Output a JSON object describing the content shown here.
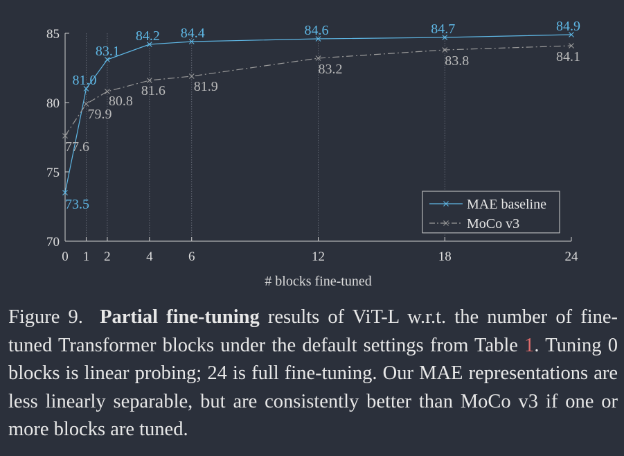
{
  "colors": {
    "background": "#2b303b",
    "mae": "#5fb8e6",
    "moco": "#9a9a9a",
    "axis": "#cfcfcf",
    "reference": "#e06c6c"
  },
  "chart_data": {
    "type": "line",
    "xlabel": "# blocks fine-tuned",
    "ylabel": "",
    "xlim": [
      0,
      24
    ],
    "ylim": [
      70,
      85
    ],
    "x": [
      0,
      1,
      2,
      4,
      6,
      12,
      18,
      24
    ],
    "x_ticks": [
      "0",
      "1",
      "2",
      "4",
      "6",
      "12",
      "18",
      "24"
    ],
    "y_ticks": [
      "70",
      "75",
      "80",
      "85"
    ],
    "grid": "vertical dotted at x ticks",
    "legend_position": "bottom-right",
    "series": [
      {
        "name": "MAE baseline",
        "style": "solid",
        "marker": "x",
        "values": [
          73.5,
          81.0,
          83.1,
          84.2,
          84.4,
          84.6,
          84.7,
          84.9
        ],
        "labels": [
          "73.5",
          "81.0",
          "83.1",
          "84.2",
          "84.4",
          "84.6",
          "84.7",
          "84.9"
        ]
      },
      {
        "name": "MoCo v3",
        "style": "dash-dot",
        "marker": "x",
        "values": [
          77.6,
          79.9,
          80.8,
          81.6,
          81.9,
          83.2,
          83.8,
          84.1
        ],
        "labels": [
          "77.6",
          "79.9",
          "80.8",
          "81.6",
          "81.9",
          "83.2",
          "83.8",
          "84.1"
        ]
      }
    ]
  },
  "caption": {
    "figure_number": "Figure 9.",
    "bold_phrase": "Partial fine-tuning",
    "text_1": "results of ViT-L w.r.t. the number of fine-tuned Transformer blocks under the default settings from Table",
    "table_ref": "1",
    "text_2": ". Tuning 0 blocks is linear probing; 24 is full fine-tuning. Our MAE representations are less linearly separable, but are consistently better than MoCo v3 if one or more blocks are tuned."
  }
}
